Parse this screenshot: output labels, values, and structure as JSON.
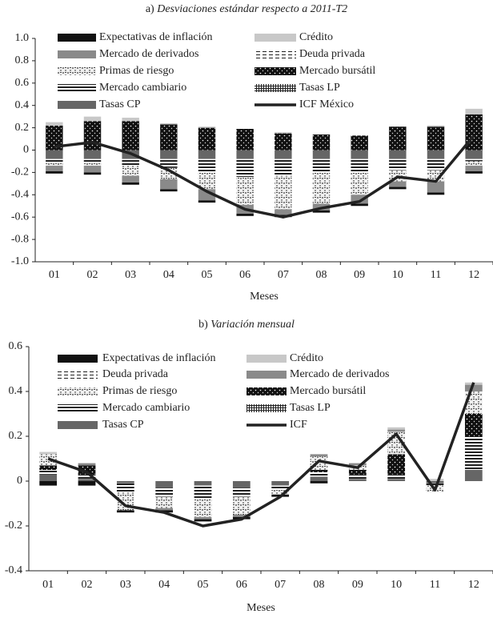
{
  "chart_data": [
    {
      "type": "bar",
      "prefix": "a)",
      "title": "Desviaciones estándar respecto a 2011-T2",
      "xlabel": "Meses",
      "categories": [
        "01",
        "02",
        "03",
        "04",
        "05",
        "06",
        "07",
        "08",
        "09",
        "10",
        "11",
        "12"
      ],
      "ylim": [
        -1,
        1
      ],
      "yticks": [
        {
          "value": 1,
          "label": "1.0"
        },
        0.8,
        0.6,
        0.4,
        0.2,
        0,
        -0.2,
        -0.4,
        -0.6,
        -0.8,
        {
          "value": -1,
          "label": "-1.0"
        }
      ],
      "series": [
        {
          "name": "Expectativas de inflación",
          "color": "#111111",
          "values": [
            -0.02,
            -0.02,
            -0.02,
            -0.02,
            -0.02,
            -0.02,
            -0.02,
            -0.02,
            -0.02,
            -0.02,
            -0.02,
            -0.02
          ]
        },
        {
          "name": "Crédito",
          "color": "#c8c8c8",
          "values": [
            0.03,
            0.04,
            0.03,
            0.01,
            0.01,
            0,
            0.01,
            0,
            0,
            0,
            0.01,
            0.05
          ]
        },
        {
          "name": "Mercado de derivados",
          "color": "#8a8a8a",
          "values": [
            -0.05,
            -0.06,
            -0.06,
            -0.09,
            -0.1,
            -0.08,
            -0.05,
            -0.06,
            -0.08,
            -0.05,
            -0.1,
            -0.05
          ]
        },
        {
          "name": "Deuda privada",
          "color": "#ffffff",
          "pattern": "dashes",
          "values": [
            0,
            0,
            0,
            0,
            0,
            0,
            0,
            0,
            0,
            0,
            0,
            0
          ]
        },
        {
          "name": "Primas de riesgo",
          "color": "#dddddd",
          "pattern": "speckle",
          "values": [
            -0.02,
            -0.02,
            -0.09,
            -0.1,
            -0.15,
            -0.25,
            -0.3,
            -0.28,
            -0.2,
            -0.1,
            -0.1,
            -0.04
          ]
        },
        {
          "name": "Mercado bursátil",
          "color": "#111111",
          "pattern": "darkspeckle",
          "values": [
            0.22,
            0.26,
            0.26,
            0.23,
            0.2,
            0.19,
            0.15,
            0.14,
            0.13,
            0.21,
            0.21,
            0.32
          ]
        },
        {
          "name": "Mercado cambiario",
          "color": "#ffffff",
          "pattern": "hstripes",
          "values": [
            -0.04,
            -0.04,
            -0.06,
            -0.08,
            -0.12,
            -0.16,
            -0.15,
            -0.12,
            -0.12,
            -0.1,
            -0.1,
            -0.02
          ]
        },
        {
          "name": "Tasas LP",
          "color": "#ffffff",
          "pattern": "grid",
          "values": [
            0,
            0,
            0,
            0,
            0,
            0,
            0,
            0,
            0,
            0,
            0,
            0
          ]
        },
        {
          "name": "Tasas CP",
          "color": "#666666",
          "values": [
            -0.08,
            -0.08,
            -0.08,
            -0.08,
            -0.08,
            -0.08,
            -0.08,
            -0.08,
            -0.08,
            -0.08,
            -0.08,
            -0.08
          ]
        },
        {
          "name": "ICF México",
          "type": "line",
          "color": "#222222",
          "values": [
            0.03,
            0.07,
            -0.03,
            -0.18,
            -0.37,
            -0.53,
            -0.6,
            -0.52,
            -0.46,
            -0.24,
            -0.28,
            0.13
          ]
        }
      ]
    },
    {
      "type": "bar",
      "prefix": "b)",
      "title": "Variación mensual",
      "xlabel": "Meses",
      "categories": [
        "01",
        "02",
        "03",
        "04",
        "05",
        "06",
        "07",
        "08",
        "09",
        "10",
        "11",
        "12"
      ],
      "ylim": [
        -0.4,
        0.6
      ],
      "yticks": [
        0.6,
        0.4,
        0.2,
        0,
        -0.2,
        -0.4
      ],
      "series": [
        {
          "name": "Expectativas de inflación",
          "color": "#111111",
          "values": [
            -0.02,
            -0.02,
            -0.01,
            -0.01,
            -0.01,
            -0.01,
            -0.01,
            -0.01,
            0,
            0,
            0,
            0
          ]
        },
        {
          "name": "Crédito",
          "color": "#c8c8c8",
          "values": [
            0.01,
            0,
            0,
            0,
            0,
            0,
            0,
            0,
            0,
            0.01,
            0.01,
            0.01
          ]
        },
        {
          "name": "Deuda privada",
          "color": "#ffffff",
          "pattern": "dashes",
          "values": [
            0,
            0,
            0,
            0,
            0,
            0,
            0,
            0,
            0,
            0,
            0,
            0
          ]
        },
        {
          "name": "Mercado de derivados",
          "color": "#8a8a8a",
          "values": [
            0,
            0.01,
            0,
            -0.01,
            -0.01,
            -0.01,
            0,
            0.01,
            0.01,
            0.01,
            0,
            0.03
          ]
        },
        {
          "name": "Primas de riesgo",
          "color": "#dddddd",
          "pattern": "speckle",
          "values": [
            0.05,
            0,
            -0.08,
            -0.05,
            -0.08,
            -0.08,
            -0.02,
            0.06,
            0.02,
            0.1,
            -0.03,
            0.1
          ]
        },
        {
          "name": "Mercado bursátil",
          "color": "#111111",
          "pattern": "darkspeckle",
          "values": [
            0.02,
            0.04,
            0,
            0,
            0,
            0,
            0,
            0.01,
            0.02,
            0.09,
            0,
            0.1
          ]
        },
        {
          "name": "Mercado cambiario",
          "color": "#ffffff",
          "pattern": "hstripes",
          "values": [
            0.02,
            0.02,
            -0.04,
            -0.04,
            -0.06,
            -0.04,
            -0.02,
            0.02,
            0.02,
            0.02,
            -0.01,
            0.15
          ]
        },
        {
          "name": "Tasas LP",
          "color": "#ffffff",
          "pattern": "grid",
          "values": [
            0,
            0,
            0,
            0,
            0,
            0,
            0,
            0,
            0,
            0,
            0,
            0
          ]
        },
        {
          "name": "Tasas CP",
          "color": "#666666",
          "values": [
            0.03,
            0.01,
            -0.01,
            -0.03,
            -0.02,
            -0.03,
            -0.02,
            0.02,
            0.01,
            0.01,
            -0.01,
            0.05
          ]
        },
        {
          "name": "ICF",
          "type": "line",
          "color": "#222222",
          "values": [
            0.1,
            0.04,
            -0.11,
            -0.14,
            -0.2,
            -0.17,
            -0.07,
            0.09,
            0.06,
            0.21,
            -0.04,
            0.44
          ]
        }
      ]
    }
  ]
}
